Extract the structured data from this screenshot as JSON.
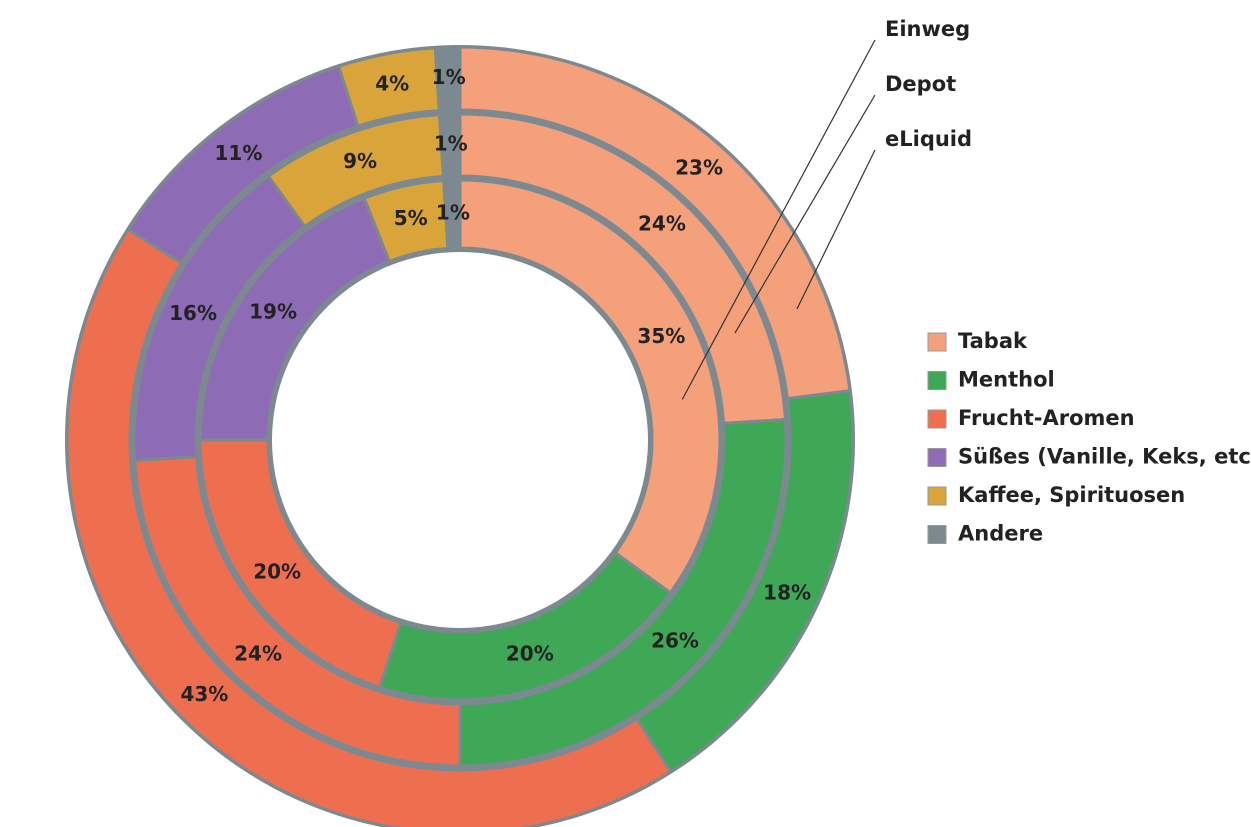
{
  "chart_data": {
    "type": "donut",
    "categories": [
      "Tabak",
      "Menthol",
      "Frucht-Aromen",
      "Süßes (Vanille, Keks, etc.)",
      "Kaffee, Spirituosen",
      "Andere"
    ],
    "colors": [
      "#f4a07a",
      "#3ea856",
      "#ee6f50",
      "#8e6bb5",
      "#d9a43a",
      "#7d8990"
    ],
    "series": [
      {
        "name": "Einweg",
        "values": [
          35,
          20,
          20,
          19,
          5,
          1
        ],
        "value_labels": [
          "35%",
          "20%",
          "20%",
          "19%",
          "5%",
          "1%"
        ]
      },
      {
        "name": "Depot",
        "values": [
          24,
          26,
          24,
          16,
          9,
          1
        ],
        "value_labels": [
          "24%",
          "26%",
          "24%",
          "16%",
          "9%",
          "1%"
        ]
      },
      {
        "name": "eLiquid",
        "values": [
          23,
          18,
          43,
          11,
          4,
          1
        ],
        "value_labels": [
          "23%",
          "18%",
          "43%",
          "11%",
          "4%",
          "1%"
        ]
      }
    ]
  }
}
